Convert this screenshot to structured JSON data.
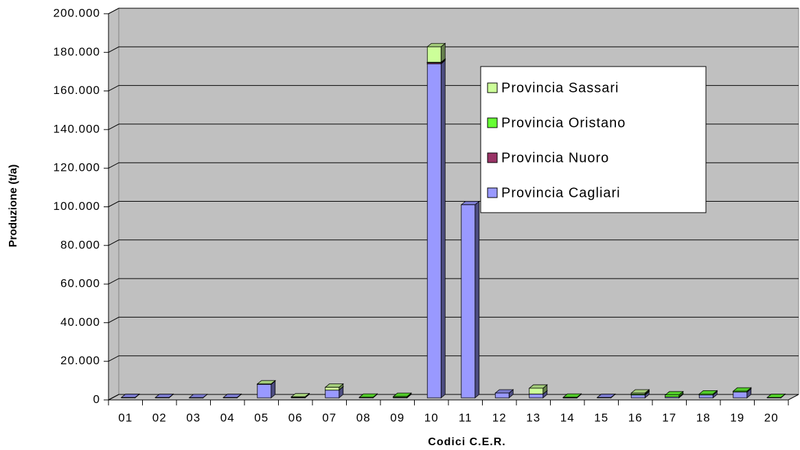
{
  "chart_data": {
    "type": "bar3d_stacked",
    "xlabel": "Codici C.E.R.",
    "ylabel": "Produzione (t/a)",
    "categories": [
      "01",
      "02",
      "03",
      "04",
      "05",
      "06",
      "07",
      "08",
      "09",
      "10",
      "11",
      "12",
      "13",
      "14",
      "15",
      "16",
      "17",
      "18",
      "19",
      "20"
    ],
    "series": [
      {
        "name": "Provincia Cagliari",
        "color": "#9999ff",
        "values": [
          200,
          200,
          100,
          200,
          7000,
          0,
          4000,
          0,
          300,
          173000,
          100000,
          2500,
          2000,
          100,
          200,
          1500,
          500,
          1500,
          3000,
          0
        ]
      },
      {
        "name": "Provincia Nuoro",
        "color": "#993366",
        "values": [
          0,
          0,
          0,
          0,
          0,
          0,
          0,
          0,
          0,
          500,
          0,
          0,
          0,
          0,
          0,
          0,
          0,
          0,
          0,
          0
        ]
      },
      {
        "name": "Provincia Oristano",
        "color": "#66ff33",
        "values": [
          0,
          0,
          0,
          0,
          0,
          300,
          0,
          300,
          400,
          300,
          0,
          0,
          0,
          200,
          0,
          500,
          1000,
          500,
          500,
          200
        ]
      },
      {
        "name": "Provincia Sassari",
        "color": "#ccff99",
        "values": [
          0,
          0,
          0,
          0,
          200,
          200,
          1500,
          0,
          0,
          8000,
          0,
          0,
          3000,
          0,
          0,
          500,
          0,
          0,
          0,
          0
        ]
      }
    ],
    "ylim": [
      0,
      200000
    ],
    "yticks": [
      0,
      {
        "value": 20000,
        "label": "20.000"
      },
      {
        "value": 40000,
        "label": "40.000"
      },
      {
        "value": 60000,
        "label": "60.000"
      },
      {
        "value": 80000,
        "label": "80.000"
      },
      {
        "value": 100000,
        "label": "100.000"
      },
      {
        "value": 120000,
        "label": "120.000"
      },
      {
        "value": 140000,
        "label": "140.000"
      },
      {
        "value": 160000,
        "label": "160.000"
      },
      {
        "value": 180000,
        "label": "180.000"
      },
      {
        "value": 200000,
        "label": "200.000"
      }
    ],
    "grid": true
  }
}
